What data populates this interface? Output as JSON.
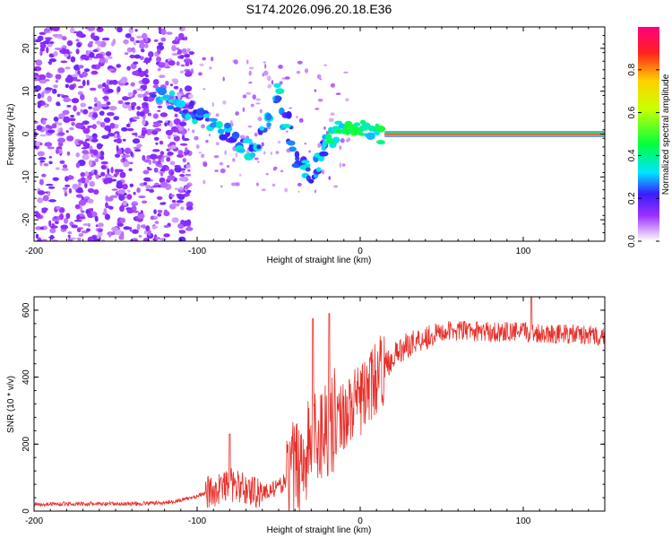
{
  "chart_data": [
    {
      "type": "heatmap",
      "title": "S174.2026.096.20.18.E36",
      "xlabel": "Height of straight line (km)",
      "ylabel": "Frequency (Hz)",
      "xlim": [
        -200,
        150
      ],
      "ylim": [
        -25,
        25
      ],
      "xticks": [
        -200,
        -100,
        0,
        100
      ],
      "yticks": [
        -20,
        -10,
        0,
        10,
        20
      ],
      "colorbar": {
        "label": "Normalized spectral amplitude",
        "range": [
          0,
          1
        ],
        "ticks": [
          0.0,
          0.2,
          0.4,
          0.6,
          0.8
        ]
      },
      "features": {
        "noise_region_km": [
          -200,
          -115
        ],
        "drift_track": [
          {
            "x": -125,
            "y": 10
          },
          {
            "x": -110,
            "y": 6
          },
          {
            "x": -95,
            "y": 4
          },
          {
            "x": -80,
            "y": 0
          },
          {
            "x": -65,
            "y": -5
          },
          {
            "x": -50,
            "y": 10
          },
          {
            "x": -40,
            "y": -5
          },
          {
            "x": -30,
            "y": -10
          },
          {
            "x": -20,
            "y": -1
          },
          {
            "x": -10,
            "y": 1
          },
          {
            "x": 0,
            "y": 1
          },
          {
            "x": 15,
            "y": 0
          }
        ],
        "carrier_line": {
          "x_start": 15,
          "x_end": 150,
          "frequency_hz": 0
        }
      }
    },
    {
      "type": "line",
      "title": "",
      "xlabel": "Height of straight line (km)",
      "ylabel": "SNR (10 * v/v)",
      "xlim": [
        -200,
        150
      ],
      "ylim": [
        0,
        640
      ],
      "xticks": [
        -200,
        -100,
        0,
        100
      ],
      "yticks": [
        0,
        200,
        400,
        600
      ],
      "series": [
        {
          "name": "SNR",
          "color": "#e8302a",
          "points": [
            {
              "x": -200,
              "y": 20
            },
            {
              "x": -180,
              "y": 22
            },
            {
              "x": -160,
              "y": 21
            },
            {
              "x": -140,
              "y": 22
            },
            {
              "x": -120,
              "y": 25
            },
            {
              "x": -110,
              "y": 32
            },
            {
              "x": -100,
              "y": 45
            },
            {
              "x": -90,
              "y": 60
            },
            {
              "x": -80,
              "y": 80
            },
            {
              "x": -70,
              "y": 65
            },
            {
              "x": -60,
              "y": 55
            },
            {
              "x": -50,
              "y": 70
            },
            {
              "x": -40,
              "y": 120
            },
            {
              "x": -30,
              "y": 200
            },
            {
              "x": -20,
              "y": 260
            },
            {
              "x": -10,
              "y": 290
            },
            {
              "x": 0,
              "y": 330
            },
            {
              "x": 10,
              "y": 400
            },
            {
              "x": 20,
              "y": 460
            },
            {
              "x": 30,
              "y": 500
            },
            {
              "x": 40,
              "y": 520
            },
            {
              "x": 50,
              "y": 535
            },
            {
              "x": 60,
              "y": 540
            },
            {
              "x": 80,
              "y": 535
            },
            {
              "x": 100,
              "y": 535
            },
            {
              "x": 120,
              "y": 530
            },
            {
              "x": 140,
              "y": 525
            },
            {
              "x": 150,
              "y": 520
            }
          ],
          "peaks": [
            {
              "x": -29,
              "y": 575
            },
            {
              "x": -19,
              "y": 590
            },
            {
              "x": -80,
              "y": 230
            },
            {
              "x": 105,
              "y": 640
            }
          ]
        }
      ]
    }
  ]
}
